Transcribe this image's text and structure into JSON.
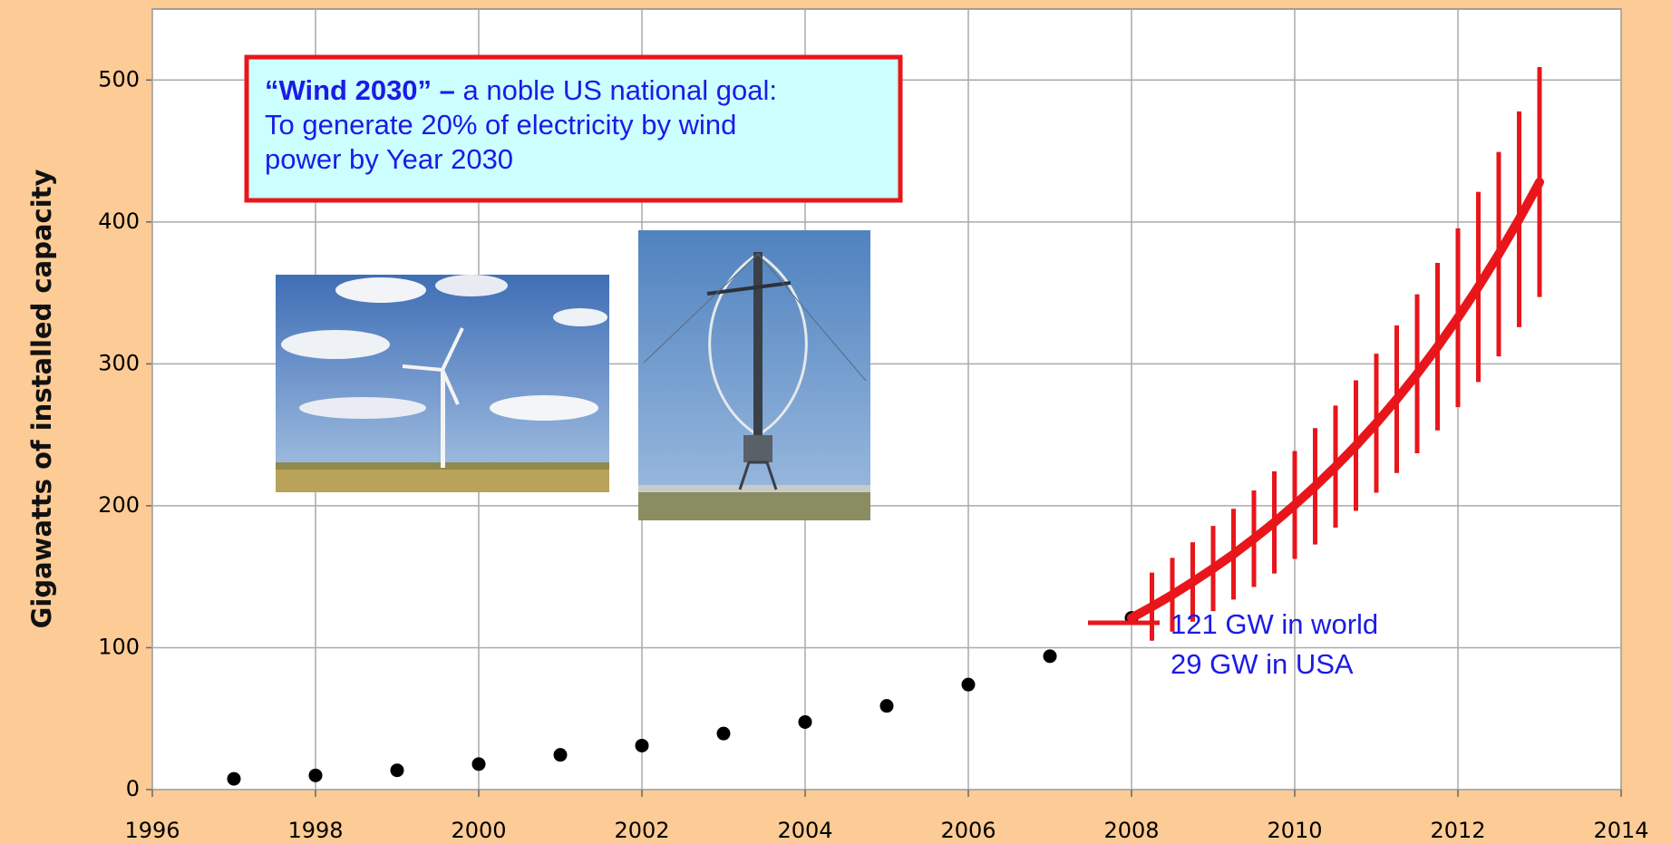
{
  "chart_data": {
    "type": "scatter",
    "ylabel": "Gigawatts of installed capacity",
    "xlim": [
      1996,
      2014
    ],
    "xticks": [
      1996,
      1998,
      2000,
      2002,
      2004,
      2006,
      2008,
      2010,
      2012,
      2014
    ],
    "ylim": [
      0,
      550
    ],
    "yticks": [
      0,
      100,
      200,
      300,
      400,
      500
    ],
    "grid": true,
    "series": [
      {
        "type": "scatter",
        "color": "#000000",
        "x": [
          1997,
          1998,
          1999,
          2000,
          2001,
          2002,
          2003,
          2004,
          2005,
          2006,
          2007,
          2008
        ],
        "values": [
          7.6,
          10,
          13.6,
          18,
          24.5,
          31,
          39.5,
          47.6,
          59,
          74,
          94,
          121
        ]
      },
      {
        "type": "line",
        "color": "#e8161b",
        "x": [
          2008,
          2008.25,
          2008.5,
          2008.75,
          2009,
          2009.25,
          2009.5,
          2009.75,
          2010,
          2010.25,
          2010.5,
          2010.75,
          2011,
          2011.25,
          2011.5,
          2011.75,
          2012,
          2012.25,
          2012.5,
          2012.75,
          2013
        ],
        "values": [
          121,
          128.9,
          137.3,
          146.3,
          155.8,
          165.9,
          176.8,
          188.3,
          200.6,
          213.7,
          227.6,
          242.4,
          258.2,
          275.1,
          293.0,
          312.1,
          332.5,
          354.2,
          377.3,
          401.9,
          428.1
        ],
        "errors": [
          null,
          24,
          26,
          28,
          30,
          32,
          34,
          36,
          38,
          41,
          43,
          46,
          49,
          52,
          56,
          59,
          63,
          67,
          72,
          76,
          81
        ]
      }
    ],
    "annotations": {
      "box_title": "“Wind 2030” –",
      "box_lines": [
        " a noble US national goal:",
        "To generate 20% of electricity by wind",
        "power by Year 2030"
      ],
      "world": "121 GW in world",
      "usa": "29 GW in USA"
    }
  }
}
